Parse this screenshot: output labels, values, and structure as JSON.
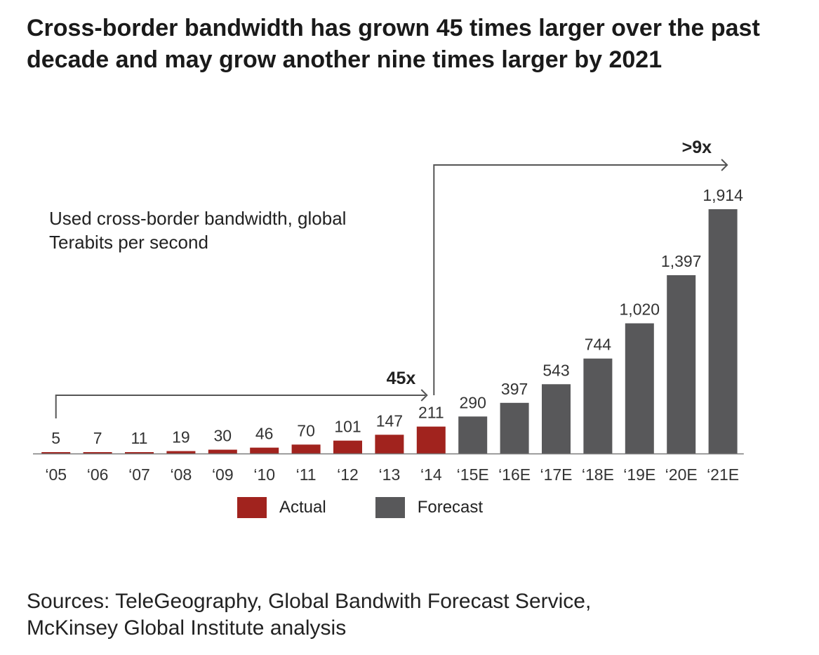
{
  "title": "Cross-border bandwidth has grown 45 times larger over the past decade and may grow another nine times larger by 2021",
  "subtitle": [
    "Used cross-border bandwidth, global",
    "Terabits per second"
  ],
  "chart_data": {
    "type": "bar",
    "categories": [
      "‘05",
      "‘06",
      "‘07",
      "‘08",
      "‘09",
      "‘10",
      "‘11",
      "‘12",
      "‘13",
      "‘14",
      "‘15E",
      "‘16E",
      "‘17E",
      "‘18E",
      "‘19E",
      "‘20E",
      "‘21E"
    ],
    "values": [
      5,
      7,
      11,
      19,
      30,
      46,
      70,
      101,
      147,
      211,
      290,
      397,
      543,
      744,
      1020,
      1397,
      1914
    ],
    "value_labels": [
      "5",
      "7",
      "11",
      "19",
      "30",
      "46",
      "70",
      "101",
      "147",
      "211",
      "290",
      "397",
      "543",
      "744",
      "1,020",
      "1,397",
      "1,914"
    ],
    "series_type": [
      "actual",
      "actual",
      "actual",
      "actual",
      "actual",
      "actual",
      "actual",
      "actual",
      "actual",
      "actual",
      "forecast",
      "forecast",
      "forecast",
      "forecast",
      "forecast",
      "forecast",
      "forecast"
    ],
    "ylim": [
      0,
      1914
    ],
    "annotations": [
      {
        "label": "45x",
        "from_category": "‘05",
        "to_category": "‘14"
      },
      {
        "label": ">9x",
        "from_category": "‘14",
        "to_category": "‘21E"
      }
    ],
    "legend": [
      {
        "name": "Actual",
        "color": "#a1231e"
      },
      {
        "name": "Forecast",
        "color": "#58585a"
      }
    ],
    "title": "Cross-border bandwidth has grown 45 times larger over the past decade and may grow another nine times larger by 2021",
    "xlabel": "",
    "ylabel": "Terabits per second"
  },
  "colors": {
    "actual": "#a1231e",
    "forecast": "#58585a",
    "axis": "#7a7a7a",
    "arrow": "#555555"
  },
  "source": [
    "Sources: TeleGeography, Global Bandwith Forecast Service,",
    "McKinsey Global Institute analysis"
  ]
}
